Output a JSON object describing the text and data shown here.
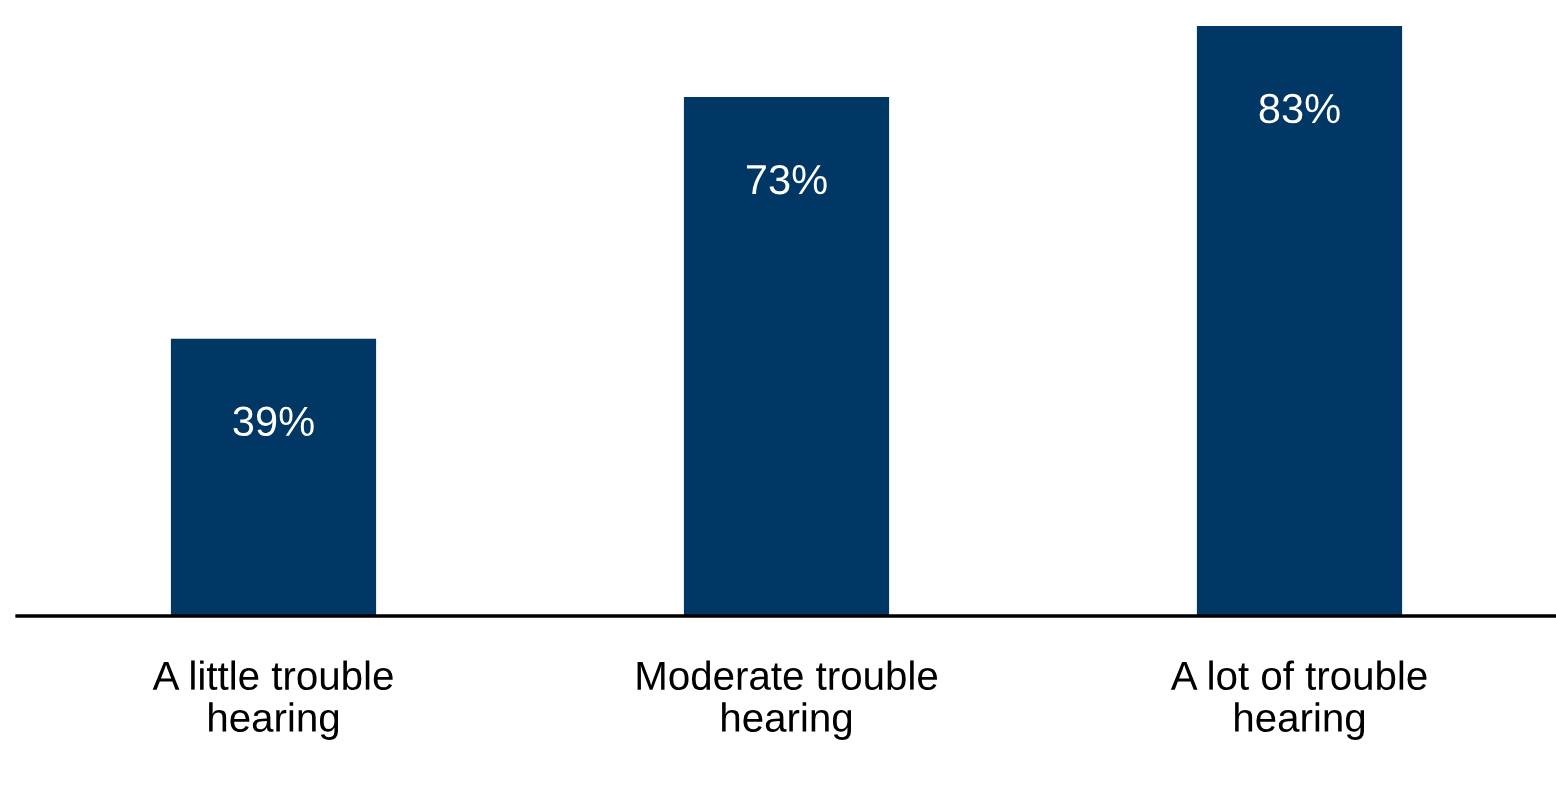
{
  "chart_data": {
    "type": "bar",
    "categories": [
      "A little trouble\nhearing",
      "Moderate trouble\nhearing",
      "A lot of trouble\nhearing"
    ],
    "values": [
      39,
      73,
      83
    ],
    "value_labels": [
      "39%",
      "73%",
      "83%"
    ],
    "color": "#003764",
    "grid": false,
    "legend": false
  }
}
